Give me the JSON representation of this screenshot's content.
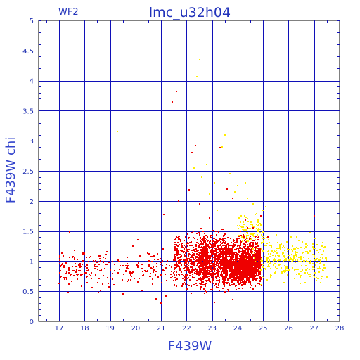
{
  "chart_data": {
    "type": "scatter",
    "title": "lmc_u32h04",
    "corner_label": "WF2",
    "xlabel": "F439W",
    "ylabel": "F439W chi",
    "xlim": [
      16.2,
      28
    ],
    "ylim": [
      0,
      5
    ],
    "x_ticks": [
      17,
      18,
      19,
      20,
      21,
      22,
      23,
      24,
      25,
      26,
      27,
      28
    ],
    "y_ticks": [
      0,
      0.5,
      1,
      1.5,
      2,
      2.5,
      3,
      3.5,
      4,
      4.5,
      5
    ],
    "y_tick_labels": [
      "0",
      "0.5",
      "1",
      "1.5",
      "2",
      "2.5",
      "3",
      "3.5",
      "4",
      "4.5",
      "5"
    ],
    "grid": true,
    "colors": {
      "grid": "#1010b8",
      "frame": "#000000",
      "text": "#2233bb"
    },
    "series": [
      {
        "color": "#ee0000",
        "points": [
          [
            21.45,
            3.65
          ],
          [
            21.6,
            3.82
          ],
          [
            22.2,
            2.8
          ],
          [
            22.35,
            2.92
          ],
          [
            23.3,
            2.88
          ],
          [
            22.1,
            2.18
          ],
          [
            23.6,
            2.2
          ],
          [
            23.8,
            2.05
          ],
          [
            24.9,
            1.75
          ],
          [
            21.1,
            1.78
          ],
          [
            20.1,
            1.35
          ],
          [
            19.9,
            1.25
          ],
          [
            17.4,
            1.48
          ],
          [
            17.1,
            0.95
          ],
          [
            17.0,
            0.63
          ],
          [
            17.35,
            0.48
          ],
          [
            17.7,
            0.85
          ],
          [
            18.0,
            1.12
          ],
          [
            18.4,
            0.95
          ],
          [
            18.3,
            0.56
          ],
          [
            19.0,
            0.72
          ],
          [
            19.5,
            0.45
          ],
          [
            20.8,
            0.37
          ],
          [
            21.0,
            0.3
          ],
          [
            21.2,
            0.42
          ],
          [
            23.1,
            0.32
          ],
          [
            23.8,
            0.36
          ],
          [
            24.6,
            0.78
          ],
          [
            24.4,
            1.55
          ],
          [
            24.3,
            1.68
          ],
          [
            24.1,
            1.5
          ],
          [
            24.6,
            1.55
          ],
          [
            22.5,
            1.95
          ],
          [
            22.9,
            1.72
          ],
          [
            21.7,
            2.0
          ],
          [
            27.0,
            1.75
          ],
          [
            25.2,
            1.4
          ],
          [
            24.8,
            1.35
          ],
          [
            24.95,
            0.6
          ],
          [
            24.95,
            0.72
          ]
        ],
        "clusters": [
          {
            "x": [
              17.0,
              21.5
            ],
            "y": [
              0.45,
              1.3
            ],
            "count": 230
          },
          {
            "x": [
              21.5,
              22.8
            ],
            "y": [
              0.4,
              1.65
            ],
            "count": 450
          },
          {
            "x": [
              22.5,
              23.6
            ],
            "y": [
              0.4,
              1.6
            ],
            "count": 800
          },
          {
            "x": [
              23.4,
              24.9
            ],
            "y": [
              0.45,
              1.5
            ],
            "count": 1200
          },
          {
            "x": [
              23.7,
              24.6
            ],
            "y": [
              0.6,
              1.05
            ],
            "count": 450
          }
        ]
      },
      {
        "color": "#ffee00",
        "points": [
          [
            19.3,
            3.15
          ],
          [
            22.5,
            4.35
          ],
          [
            22.4,
            4.07
          ],
          [
            23.5,
            3.1
          ],
          [
            23.4,
            2.9
          ],
          [
            22.6,
            2.4
          ],
          [
            23.1,
            2.3
          ],
          [
            22.8,
            2.6
          ],
          [
            22.3,
            2.55
          ],
          [
            23.9,
            2.15
          ],
          [
            24.3,
            2.3
          ],
          [
            24.4,
            2.05
          ],
          [
            23.7,
            2.45
          ],
          [
            24.0,
            2.25
          ],
          [
            22.9,
            2.12
          ],
          [
            24.6,
            1.95
          ],
          [
            25.1,
            1.9
          ],
          [
            24.8,
            1.65
          ],
          [
            23.2,
            1.85
          ]
        ],
        "clusters": [
          {
            "x": [
              24.3,
              27.5
            ],
            "y": [
              0.5,
              1.55
            ],
            "count": 340
          },
          {
            "x": [
              24.0,
              25.0
            ],
            "y": [
              1.1,
              1.9
            ],
            "count": 80
          }
        ]
      }
    ]
  }
}
